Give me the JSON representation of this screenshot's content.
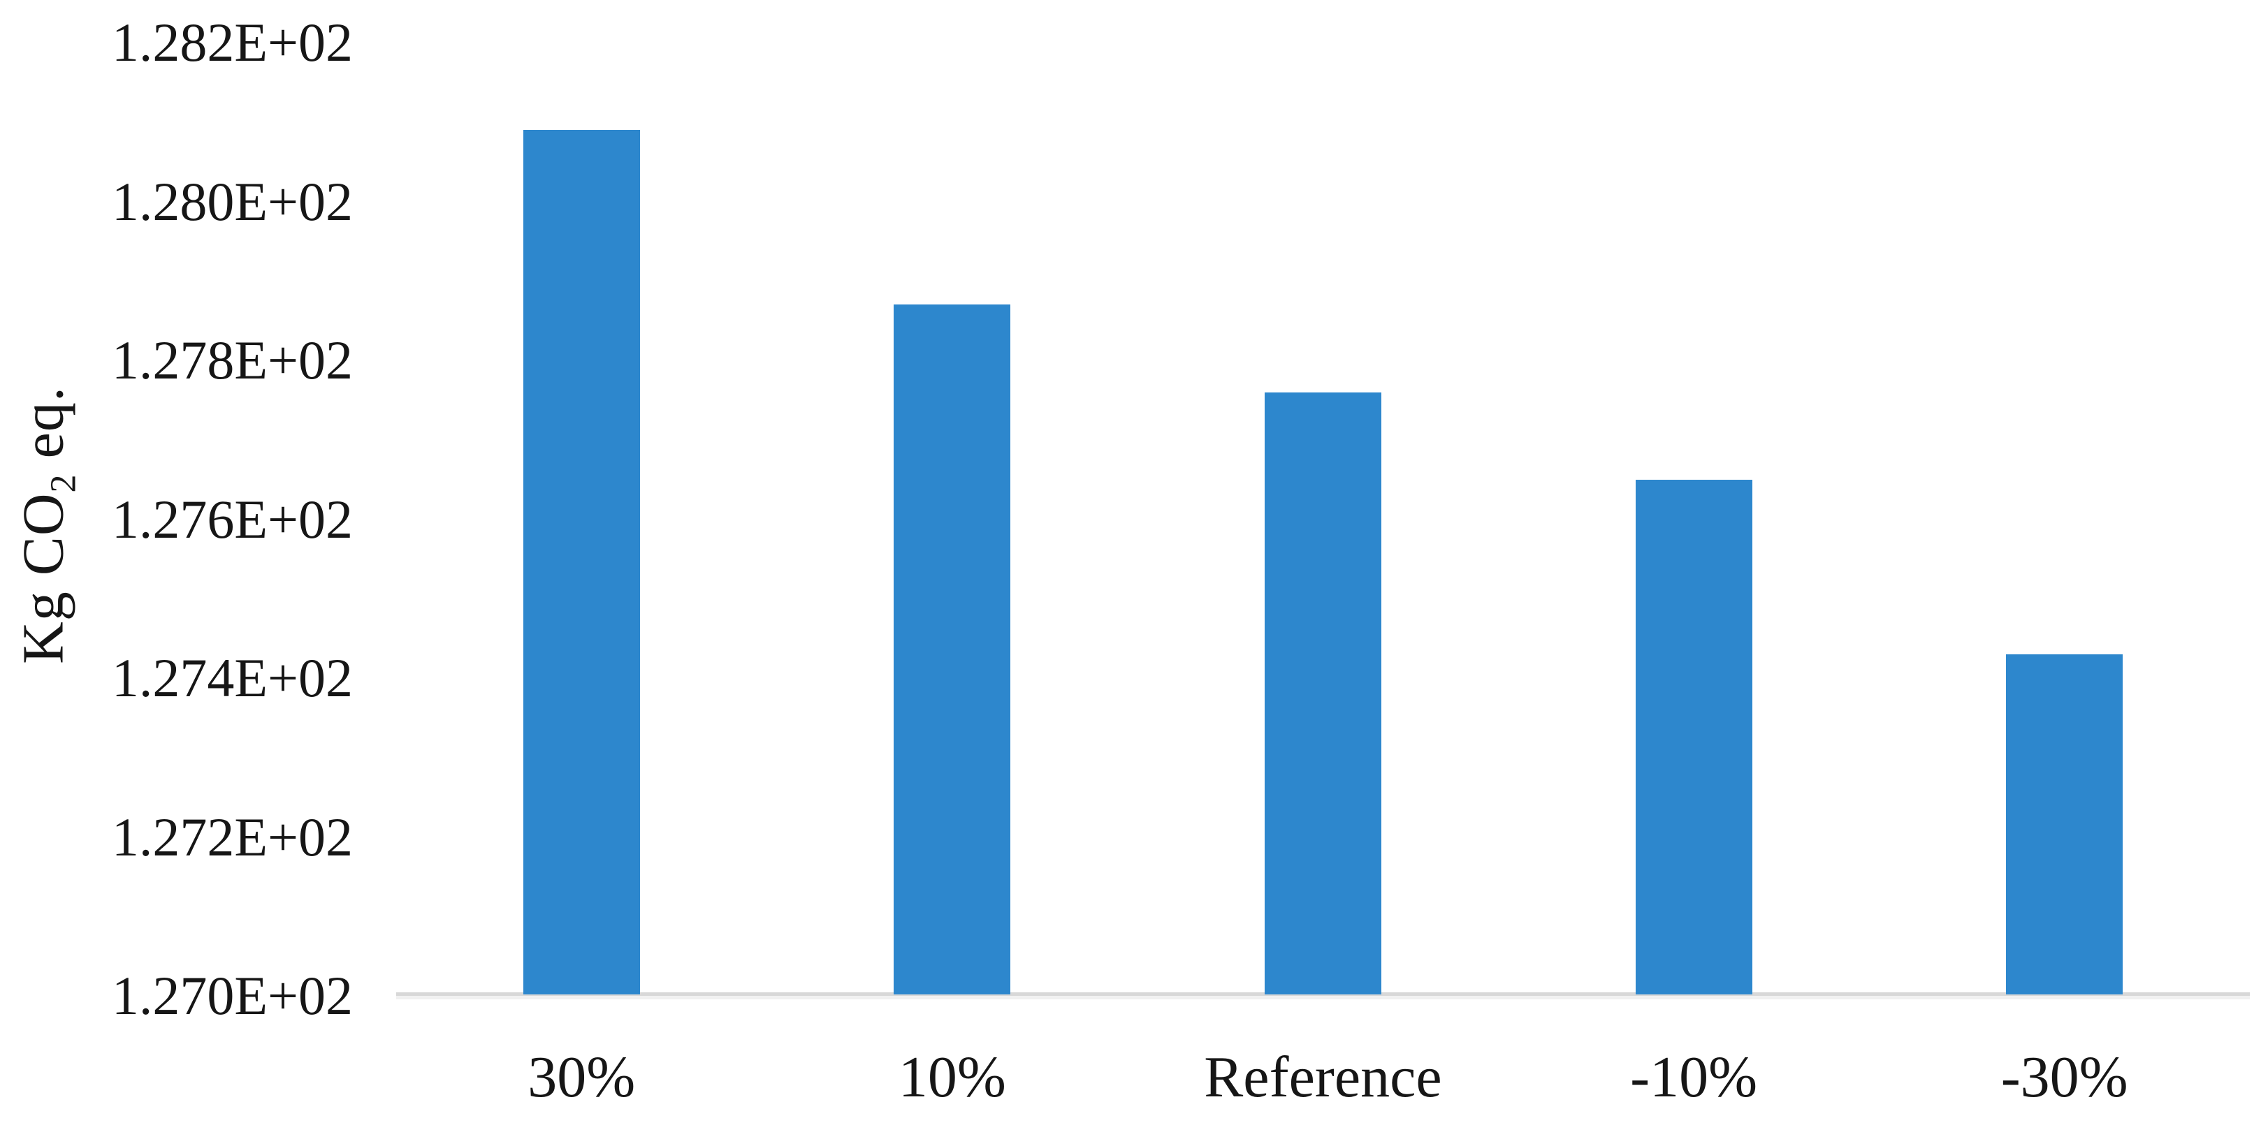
{
  "chart_data": {
    "type": "bar",
    "title": "",
    "xlabel": "",
    "ylabel": "Kg CO₂ eq.",
    "ylabel_parts": {
      "prefix": "Kg CO",
      "subscript": "2",
      "suffix": " eq."
    },
    "categories": [
      "30%",
      "10%",
      "Reference",
      "-10%",
      "-30%"
    ],
    "values": [
      128.09,
      127.87,
      127.76,
      127.65,
      127.43
    ],
    "series": [
      {
        "name": "Kg CO2 eq.",
        "values": [
          128.09,
          127.87,
          127.76,
          127.65,
          127.43
        ]
      }
    ],
    "ylim": [
      127.0,
      128.2
    ],
    "ytick_step": 0.2,
    "yticks": [
      {
        "label": "1.270E+02",
        "value": 127.0
      },
      {
        "label": "1.272E+02",
        "value": 127.2
      },
      {
        "label": "1.274E+02",
        "value": 127.4
      },
      {
        "label": "1.276E+02",
        "value": 127.6
      },
      {
        "label": "1.278E+02",
        "value": 127.8
      },
      {
        "label": "1.280E+02",
        "value": 128.0
      },
      {
        "label": "1.282E+02",
        "value": 128.2
      }
    ],
    "grid": false,
    "legend": false,
    "legend_position": "none",
    "bar_color": "#2D87CD",
    "axis_line_color": "#D8D8D8",
    "text_color": "#161616",
    "background_color": "#FFFFFF"
  }
}
